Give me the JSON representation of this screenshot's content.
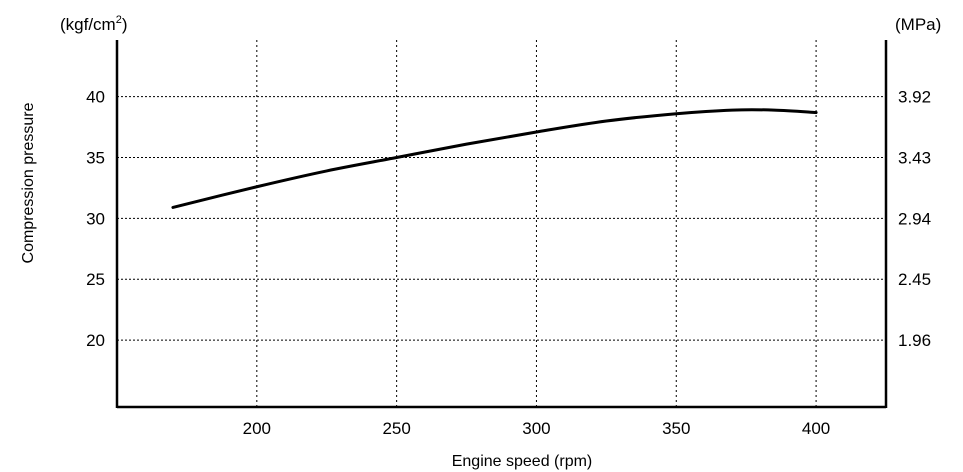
{
  "chart_data": {
    "type": "line",
    "title": "",
    "xlabel": "Engine speed (rpm)",
    "ylabel": "Compression pressure",
    "y_unit_left_base": "(kgf/cm",
    "y_unit_left_sup": "2",
    "y_unit_left_close": ")",
    "y_unit_right": "(MPa)",
    "xlim": [
      150,
      425
    ],
    "ylim": [
      14.5,
      44
    ],
    "x_ticks": [
      "200",
      "250",
      "300",
      "350",
      "400"
    ],
    "y_ticks_left": [
      "40",
      "35",
      "30",
      "25",
      "20"
    ],
    "y_ticks_right": [
      "3.92",
      "3.43",
      "2.94",
      "2.45",
      "1.96"
    ],
    "grid": true,
    "series": [
      {
        "x": [
          170,
          200,
          225,
          250,
          275,
          300,
          325,
          350,
          370,
          385,
          400
        ],
        "y": [
          30.9,
          32.6,
          33.9,
          35.0,
          36.1,
          37.1,
          38.0,
          38.6,
          38.9,
          38.9,
          38.7
        ]
      }
    ]
  }
}
